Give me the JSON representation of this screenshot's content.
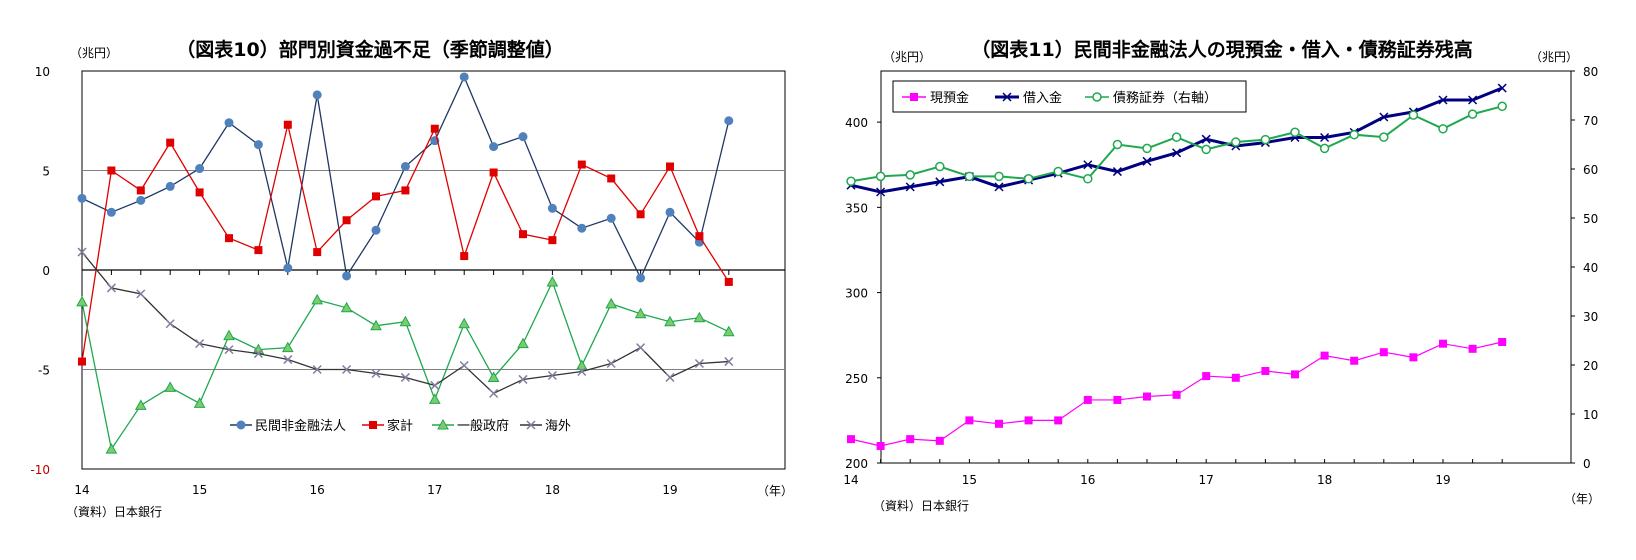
{
  "chart_data": [
    {
      "type": "line",
      "title": "（図表10）部門別資金過不足（季節調整値）",
      "unit_label": "（兆円）",
      "source": "（資料）日本銀行",
      "x_unit": "（年）",
      "ylim": [
        -10,
        10
      ],
      "yticks": [
        10,
        5,
        0,
        -5,
        -10
      ],
      "x_ticks": [
        "14",
        "15",
        "16",
        "17",
        "18",
        "19"
      ],
      "gridlines": [
        5,
        -5
      ],
      "legend_position": "bottom-center",
      "x": [
        "14Q1",
        "14Q2",
        "14Q3",
        "14Q4",
        "15Q1",
        "15Q2",
        "15Q3",
        "15Q4",
        "16Q1",
        "16Q2",
        "16Q3",
        "16Q4",
        "17Q1",
        "17Q2",
        "17Q3",
        "17Q4",
        "18Q1",
        "18Q2",
        "18Q3",
        "18Q4",
        "19Q1",
        "19Q2",
        "19Q3"
      ],
      "series": [
        {
          "name": "民間非金融法人",
          "color": "#1f3864",
          "marker": "circle",
          "values": [
            3.6,
            2.9,
            3.5,
            4.2,
            5.1,
            7.4,
            6.3,
            0.1,
            8.8,
            -0.3,
            2.0,
            5.2,
            6.5,
            9.7,
            6.2,
            6.7,
            3.1,
            2.1,
            2.6,
            -0.4,
            2.9,
            1.4,
            7.5
          ]
        },
        {
          "name": "家計",
          "color": "#e00000",
          "marker": "square",
          "values": [
            -4.6,
            5.0,
            4.0,
            6.4,
            3.9,
            1.6,
            1.0,
            7.3,
            0.9,
            2.5,
            3.7,
            4.0,
            7.1,
            0.7,
            4.9,
            1.8,
            1.5,
            5.3,
            4.6,
            2.8,
            5.2,
            1.7,
            -0.6
          ]
        },
        {
          "name": "一般政府",
          "color": "#1fa84f",
          "marker": "triangle",
          "values": [
            -1.6,
            -9.0,
            -6.8,
            -5.9,
            -6.7,
            -3.3,
            -4.0,
            -3.9,
            -1.5,
            -1.9,
            -2.8,
            -2.6,
            -6.5,
            -2.7,
            -5.4,
            -3.7,
            -0.6,
            -4.8,
            -1.7,
            -2.2,
            -2.6,
            -2.4,
            -3.1
          ]
        },
        {
          "name": "海外",
          "color": "#333333",
          "marker": "x",
          "values": [
            0.9,
            -0.9,
            -1.2,
            -2.7,
            -3.7,
            -4.0,
            -4.2,
            -4.5,
            -5.0,
            -5.0,
            -5.2,
            -5.4,
            -5.8,
            -4.8,
            -6.2,
            -5.5,
            -5.3,
            -5.1,
            -4.7,
            -3.9,
            -5.4,
            -4.7,
            -4.6
          ]
        }
      ]
    },
    {
      "type": "line",
      "title": "（図表11）民間非金融法人の現預金・借入・債務証券残高",
      "unit_label_left": "（兆円）",
      "unit_label_right": "（兆円）",
      "source": "（資料）日本銀行",
      "x_unit": "（年）",
      "ylim": [
        200,
        430
      ],
      "yticks": [
        400,
        350,
        300,
        250,
        200
      ],
      "y2lim": [
        0,
        80
      ],
      "y2ticks": [
        80,
        70,
        60,
        50,
        40,
        30,
        20,
        10,
        0
      ],
      "x_ticks": [
        "14",
        "15",
        "16",
        "17",
        "18",
        "19"
      ],
      "legend_position": "top-left",
      "x": [
        "14Q1",
        "14Q2",
        "14Q3",
        "14Q4",
        "15Q1",
        "15Q2",
        "15Q3",
        "15Q4",
        "16Q1",
        "16Q2",
        "16Q3",
        "16Q4",
        "17Q1",
        "17Q2",
        "17Q3",
        "17Q4",
        "18Q1",
        "18Q2",
        "18Q3",
        "18Q4",
        "19Q1",
        "19Q2",
        "19Q3"
      ],
      "series": [
        {
          "name": "現預金",
          "color": "#ff00ff",
          "marker": "square",
          "axis": "left",
          "values": [
            214,
            210,
            214,
            213,
            225,
            223,
            225,
            225,
            237,
            237,
            239,
            240,
            251,
            250,
            254,
            252,
            263,
            260,
            265,
            262,
            270,
            267,
            271
          ]
        },
        {
          "name": "借入金",
          "color": "#000080",
          "marker": "x",
          "axis": "left",
          "values": [
            363,
            359,
            362,
            365,
            368,
            362,
            366,
            370,
            375,
            371,
            377,
            382,
            390,
            386,
            388,
            391,
            391,
            394,
            403,
            406,
            413,
            413,
            420
          ]
        },
        {
          "name": "債務証券（右軸）",
          "color": "#1fa84f",
          "marker": "circle-open",
          "axis": "right",
          "values": [
            57.5,
            58.5,
            58.8,
            60.5,
            58.5,
            58.5,
            58.0,
            59.5,
            58.0,
            65.0,
            64.2,
            66.5,
            64.0,
            65.5,
            66.0,
            67.5,
            64.2,
            67.0,
            66.5,
            71.0,
            68.2,
            71.2,
            72.8
          ]
        }
      ]
    }
  ]
}
